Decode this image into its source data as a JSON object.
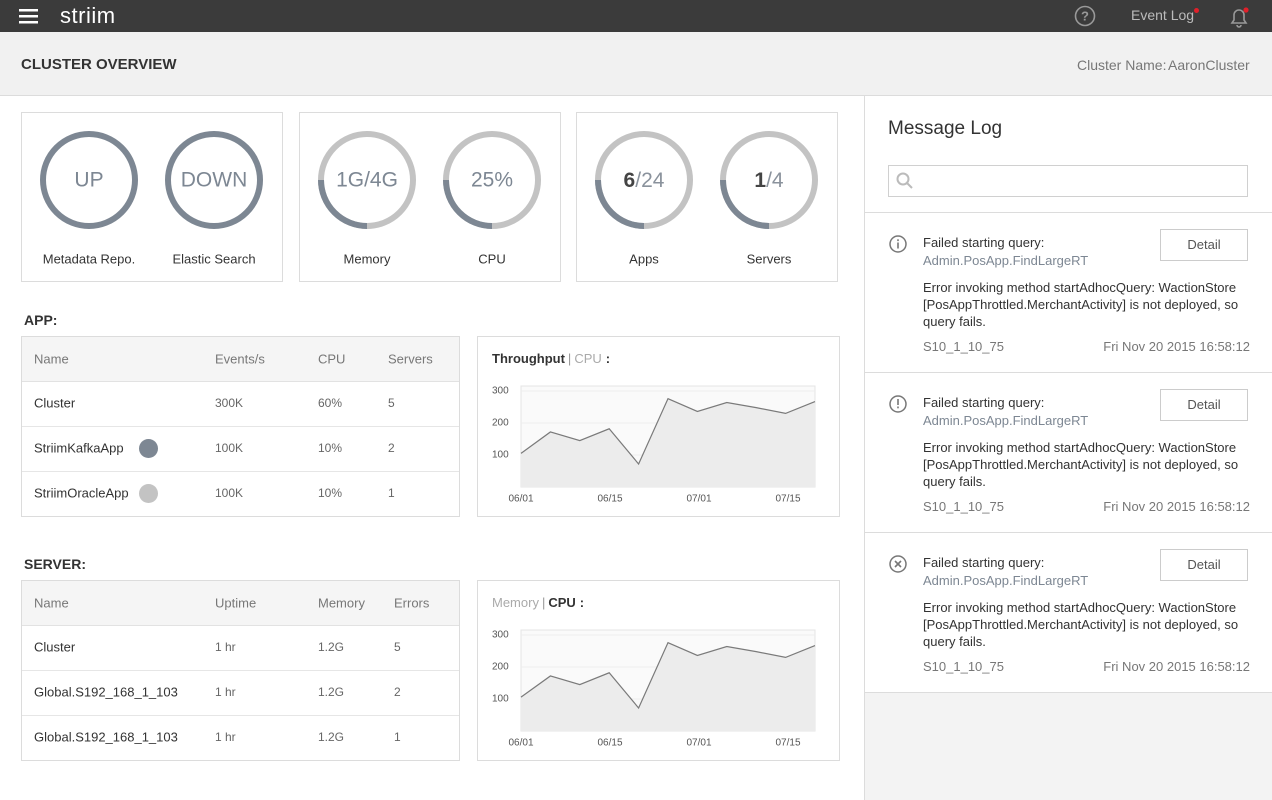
{
  "topbar": {
    "logo": "striim",
    "event_log": "Event Log"
  },
  "header": {
    "title": "CLUSTER OVERVIEW",
    "cluster_label": "Cluster Name:",
    "cluster_name": "AaronCluster"
  },
  "status_cards": [
    {
      "gauges": [
        {
          "text": "UP",
          "label": "Metadata Repo."
        },
        {
          "text": "DOWN",
          "label": "Elastic Search"
        }
      ]
    },
    {
      "gauges": [
        {
          "text": "1G/4G",
          "label": "Memory",
          "percent": 25
        },
        {
          "text": "25%",
          "label": "CPU",
          "percent": 25
        }
      ]
    },
    {
      "gauges": [
        {
          "count": "6",
          "total": "/24",
          "label": "Apps",
          "percent": 25
        },
        {
          "count": "1",
          "total": "/4",
          "label": "Servers",
          "percent": 25
        }
      ]
    }
  ],
  "gauge_colors": {
    "ring": "#7d8793",
    "track": "#c3c3c3"
  },
  "sections": [
    {
      "title": "APP:",
      "columns": [
        "Name",
        "Events/s",
        "CPU",
        "Servers"
      ],
      "rows": [
        {
          "cells": [
            "Cluster",
            "300K",
            "60%",
            "5"
          ]
        },
        {
          "cells": [
            "StriimKafkaApp",
            "100K",
            "10%",
            "2"
          ],
          "dot": "#7d8793"
        },
        {
          "cells": [
            "StriimOracleApp",
            "100K",
            "10%",
            "1"
          ],
          "dot": "#c3c3c3"
        }
      ],
      "chart": {
        "type": "line",
        "tabs": [
          {
            "label": "Throughput",
            "active": true
          },
          {
            "label": "CPU",
            "active": false
          }
        ],
        "separator": "|",
        "colon": ":",
        "values": [
          105,
          172,
          145,
          182,
          72,
          276,
          236,
          264,
          248,
          230,
          267
        ],
        "ylim": [
          0,
          300
        ],
        "yticks": [
          100,
          200,
          300
        ],
        "xticks": [
          "06/01",
          "06/15",
          "07/01",
          "07/15"
        ],
        "color": "#7a7a7a"
      }
    },
    {
      "title": "SERVER:",
      "columns": [
        "Name",
        "Uptime",
        "Memory",
        "Errors"
      ],
      "rows": [
        {
          "cells": [
            "Cluster",
            "1 hr",
            "1.2G",
            "5"
          ]
        },
        {
          "cells": [
            "Global.S192_168_1_103",
            "1 hr",
            "1.2G",
            "2"
          ]
        },
        {
          "cells": [
            "Global.S192_168_1_103",
            "1 hr",
            "1.2G",
            "1"
          ]
        }
      ],
      "chart": {
        "type": "line",
        "tabs": [
          {
            "label": "Memory",
            "active": false
          },
          {
            "label": "CPU",
            "active": true
          }
        ],
        "separator": "|",
        "colon": ":",
        "values": [
          106,
          172,
          145,
          182,
          72,
          276,
          236,
          264,
          248,
          230,
          267
        ],
        "ylim": [
          0,
          300
        ],
        "yticks": [
          100,
          200,
          300
        ],
        "xticks": [
          "06/01",
          "06/15",
          "07/01",
          "07/15"
        ],
        "color": "#7a7a7a"
      }
    }
  ],
  "message_log": {
    "title": "Message Log",
    "messages": [
      {
        "icon": "info",
        "title": "Failed starting query:",
        "query": "Admin.PosApp.FindLargeRT",
        "body": "Error invoking method startAdhocQuery: WactionStore [PosAppThrottled.MerchantActivity] is not deployed, so query fails.",
        "source": "S10_1_10_75",
        "time": "Fri Nov 20 2015 16:58:12",
        "button": "Detail"
      },
      {
        "icon": "warning",
        "title": "Failed starting query:",
        "query": "Admin.PosApp.FindLargeRT",
        "body": "Error invoking method startAdhocQuery: WactionStore [PosAppThrottled.MerchantActivity] is not deployed, so query fails.",
        "source": "S10_1_10_75",
        "time": "Fri Nov 20 2015 16:58:12",
        "button": "Detail"
      },
      {
        "icon": "error",
        "title": "Failed starting query:",
        "query": "Admin.PosApp.FindLargeRT",
        "body": "Error invoking method startAdhocQuery: WactionStore [PosAppThrottled.MerchantActivity] is not deployed, so query fails.",
        "source": "S10_1_10_75",
        "time": "Fri Nov 20 2015 16:58:12",
        "button": "Detail"
      }
    ]
  }
}
